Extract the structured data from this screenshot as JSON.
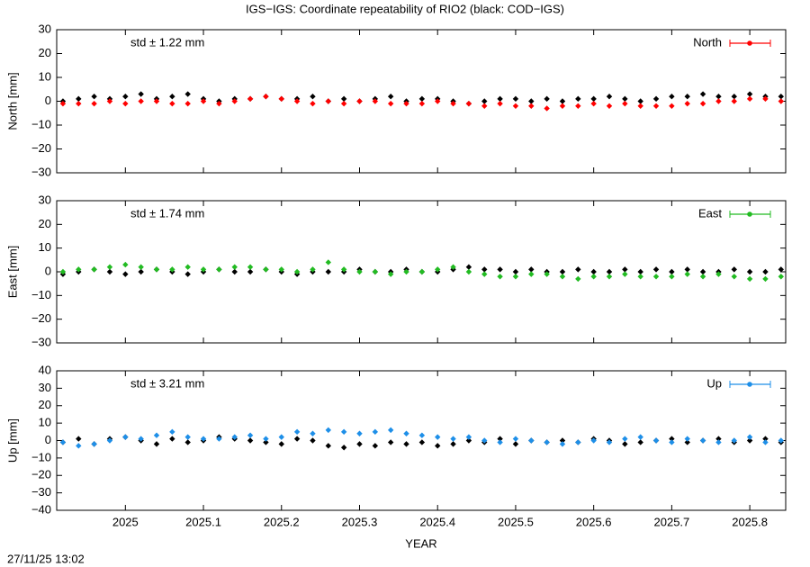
{
  "title": "IGS−IGS: Coordinate repeatability of RIO2 (black: COD−IGS)",
  "timestamp": "27/11/25 13:02",
  "chart_data": [
    {
      "type": "scatter",
      "ylabel": "North [mm]",
      "annotation": "std ± 1.22 mm",
      "legend": "top-right",
      "x": [
        2024.92,
        2024.94,
        2024.96,
        2024.98,
        2025.0,
        2025.02,
        2025.04,
        2025.06,
        2025.08,
        2025.1,
        2025.12,
        2025.14,
        2025.16,
        2025.18,
        2025.2,
        2025.22,
        2025.24,
        2025.26,
        2025.28,
        2025.3,
        2025.32,
        2025.34,
        2025.36,
        2025.38,
        2025.4,
        2025.42,
        2025.44,
        2025.46,
        2025.48,
        2025.5,
        2025.52,
        2025.54,
        2025.56,
        2025.58,
        2025.6,
        2025.62,
        2025.64,
        2025.66,
        2025.68,
        2025.7,
        2025.72,
        2025.74,
        2025.76,
        2025.78,
        2025.8,
        2025.82,
        2025.84
      ],
      "xlim": [
        2024.912,
        2025.846
      ],
      "xticks": [
        2025,
        2025.1,
        2025.2,
        2025.3,
        2025.4,
        2025.5,
        2025.6,
        2025.7,
        2025.8
      ],
      "ylim": [
        -30,
        30
      ],
      "yticks": [
        {
          "value": -30,
          "label": "−30"
        },
        {
          "value": -20,
          "label": "−20"
        },
        {
          "value": -10,
          "label": "−10"
        },
        0,
        10,
        20,
        30
      ],
      "series": [
        {
          "color": "#000000",
          "values": [
            0,
            1,
            2,
            1,
            2,
            3,
            1,
            2,
            3,
            1,
            0,
            1,
            1,
            2,
            1,
            1,
            2,
            0,
            1,
            0,
            1,
            2,
            0,
            1,
            1,
            0,
            -1,
            0,
            1,
            1,
            0,
            1,
            0,
            1,
            1,
            2,
            1,
            0,
            1,
            2,
            2,
            3,
            2,
            2,
            3,
            2,
            2
          ]
        },
        {
          "name": "North",
          "color": "#ff0000",
          "values": [
            -1,
            -1,
            -1,
            0,
            -1,
            0,
            0,
            -1,
            -1,
            0,
            -1,
            0,
            1,
            2,
            1,
            0,
            -1,
            0,
            -1,
            0,
            0,
            -1,
            -1,
            -1,
            0,
            -1,
            -1,
            -2,
            -1,
            -2,
            -2,
            -3,
            -2,
            -2,
            -1,
            -2,
            -1,
            -2,
            -2,
            -2,
            -1,
            -1,
            0,
            0,
            1,
            1,
            0
          ]
        }
      ]
    },
    {
      "type": "scatter",
      "ylabel": "East [mm]",
      "annotation": "std ± 1.74 mm",
      "legend": "top-right",
      "x": [
        2024.92,
        2024.94,
        2024.96,
        2024.98,
        2025.0,
        2025.02,
        2025.04,
        2025.06,
        2025.08,
        2025.1,
        2025.12,
        2025.14,
        2025.16,
        2025.18,
        2025.2,
        2025.22,
        2025.24,
        2025.26,
        2025.28,
        2025.3,
        2025.32,
        2025.34,
        2025.36,
        2025.38,
        2025.4,
        2025.42,
        2025.44,
        2025.46,
        2025.48,
        2025.5,
        2025.52,
        2025.54,
        2025.56,
        2025.58,
        2025.6,
        2025.62,
        2025.64,
        2025.66,
        2025.68,
        2025.7,
        2025.72,
        2025.74,
        2025.76,
        2025.78,
        2025.8,
        2025.82,
        2025.84
      ],
      "xlim": [
        2024.912,
        2025.846
      ],
      "xticks": [
        2025,
        2025.1,
        2025.2,
        2025.3,
        2025.4,
        2025.5,
        2025.6,
        2025.7,
        2025.8
      ],
      "ylim": [
        -30,
        30
      ],
      "yticks": [
        {
          "value": -30,
          "label": "−30"
        },
        {
          "value": -20,
          "label": "−20"
        },
        {
          "value": -10,
          "label": "−10"
        },
        0,
        10,
        20,
        30
      ],
      "series": [
        {
          "color": "#000000",
          "values": [
            -1,
            0,
            1,
            0,
            -1,
            0,
            1,
            0,
            -1,
            0,
            1,
            0,
            0,
            1,
            0,
            -1,
            0,
            0,
            0,
            1,
            0,
            0,
            1,
            0,
            0,
            1,
            2,
            1,
            1,
            0,
            1,
            0,
            0,
            1,
            0,
            0,
            1,
            0,
            1,
            0,
            1,
            0,
            0,
            1,
            0,
            0,
            1
          ]
        },
        {
          "name": "East",
          "color": "#22bb22",
          "values": [
            0,
            1,
            1,
            2,
            3,
            2,
            1,
            1,
            2,
            1,
            1,
            2,
            2,
            1,
            1,
            0,
            1,
            4,
            1,
            0,
            0,
            -1,
            0,
            0,
            1,
            2,
            0,
            -1,
            -2,
            -2,
            -1,
            -1,
            -2,
            -3,
            -2,
            -2,
            -1,
            -2,
            -2,
            -2,
            -1,
            -2,
            -1,
            -2,
            -3,
            -3,
            -2
          ]
        }
      ]
    },
    {
      "type": "scatter",
      "ylabel": "Up [mm]",
      "xlabel": "YEAR",
      "annotation": "std ± 3.21 mm",
      "legend": "top-right",
      "x": [
        2024.92,
        2024.94,
        2024.96,
        2024.98,
        2025.0,
        2025.02,
        2025.04,
        2025.06,
        2025.08,
        2025.1,
        2025.12,
        2025.14,
        2025.16,
        2025.18,
        2025.2,
        2025.22,
        2025.24,
        2025.26,
        2025.28,
        2025.3,
        2025.32,
        2025.34,
        2025.36,
        2025.38,
        2025.4,
        2025.42,
        2025.44,
        2025.46,
        2025.48,
        2025.5,
        2025.52,
        2025.54,
        2025.56,
        2025.58,
        2025.6,
        2025.62,
        2025.64,
        2025.66,
        2025.68,
        2025.7,
        2025.72,
        2025.74,
        2025.76,
        2025.78,
        2025.8,
        2025.82,
        2025.84
      ],
      "xlim": [
        2024.912,
        2025.846
      ],
      "xticks": [
        2025,
        2025.1,
        2025.2,
        2025.3,
        2025.4,
        2025.5,
        2025.6,
        2025.7,
        2025.8
      ],
      "ylim": [
        -40,
        40
      ],
      "yticks": [
        {
          "value": -40,
          "label": "−40"
        },
        {
          "value": -30,
          "label": "−30"
        },
        {
          "value": -20,
          "label": "−20"
        },
        {
          "value": -10,
          "label": "−10"
        },
        0,
        10,
        20,
        30,
        40
      ],
      "series": [
        {
          "color": "#000000",
          "values": [
            -1,
            1,
            -2,
            1,
            2,
            0,
            -2,
            1,
            -1,
            0,
            2,
            1,
            0,
            -1,
            -2,
            1,
            0,
            -3,
            -4,
            -2,
            -3,
            -1,
            -2,
            -1,
            -3,
            -2,
            0,
            -1,
            1,
            -2,
            0,
            -1,
            0,
            -1,
            1,
            0,
            -2,
            -1,
            0,
            1,
            -1,
            0,
            1,
            -1,
            0,
            1,
            -1
          ]
        },
        {
          "name": "Up",
          "color": "#1e8fe8",
          "values": [
            -1,
            -3,
            -2,
            0,
            2,
            1,
            3,
            5,
            2,
            1,
            1,
            2,
            3,
            1,
            2,
            5,
            4,
            6,
            5,
            4,
            5,
            6,
            4,
            3,
            2,
            1,
            2,
            0,
            -1,
            1,
            0,
            -1,
            -2,
            -1,
            0,
            -1,
            1,
            2,
            0,
            -1,
            1,
            0,
            -1,
            0,
            2,
            -1,
            0
          ]
        }
      ]
    }
  ]
}
